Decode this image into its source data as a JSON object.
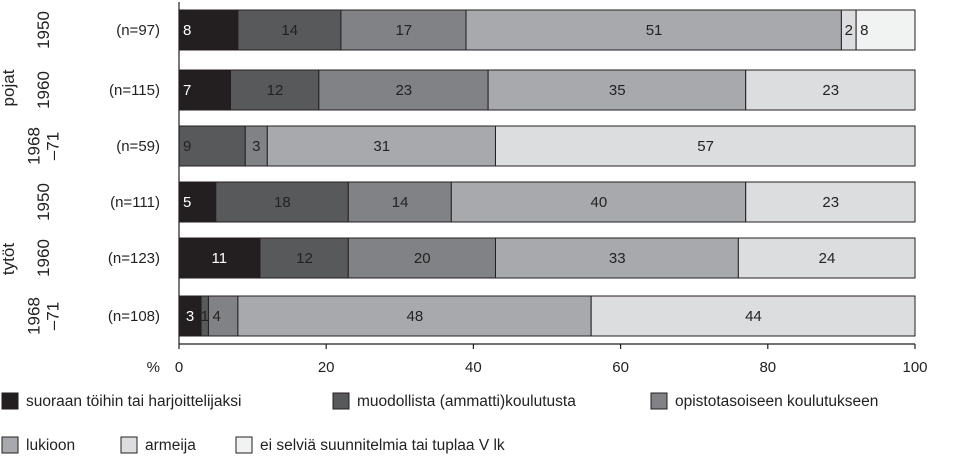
{
  "chart_data": {
    "type": "bar",
    "orientation": "horizontal",
    "stacked": true,
    "xlim": [
      0,
      100
    ],
    "xticks": [
      0,
      20,
      40,
      60,
      80,
      100
    ],
    "x_unit": "%",
    "grid": false,
    "legend_position": "bottom",
    "groups": [
      {
        "label": "pojat",
        "rows": [
          0,
          1,
          2
        ]
      },
      {
        "label": "tytöt",
        "rows": [
          3,
          4,
          5
        ]
      }
    ],
    "rows": [
      {
        "year": "1950",
        "n": "(n=97)",
        "values": [
          8,
          14,
          17,
          51,
          2,
          8
        ]
      },
      {
        "year": "1960",
        "n": "(n=115)",
        "values": [
          7,
          12,
          23,
          35,
          23,
          0
        ]
      },
      {
        "year": "1968\n–71",
        "n": "(n=59)",
        "values": [
          0,
          9,
          3,
          31,
          57,
          0
        ]
      },
      {
        "year": "1950",
        "n": "(n=111)",
        "values": [
          5,
          18,
          14,
          40,
          23,
          0
        ]
      },
      {
        "year": "1960",
        "n": "(n=123)",
        "values": [
          11,
          12,
          20,
          33,
          24,
          0
        ]
      },
      {
        "year": "1968\n–71",
        "n": "(n=108)",
        "values": [
          3,
          1,
          4,
          48,
          44,
          0
        ]
      }
    ],
    "series": [
      {
        "name": "suoraan töihin tai harjoittelijaksi",
        "color": "#231f20",
        "text_color": "#ffffff"
      },
      {
        "name": "muodollista (ammatti)koulutusta",
        "color": "#58595b",
        "text_color": "#222222"
      },
      {
        "name": "opistotasoiseen koulutukseen",
        "color": "#808285",
        "text_color": "#222222"
      },
      {
        "name": "lukioon",
        "color": "#a7a9ac",
        "text_color": "#222222"
      },
      {
        "name": "armeija",
        "color": "#dcddde",
        "text_color": "#222222"
      },
      {
        "name": "ei selviä suunnitelmia tai tuplaa V lk",
        "color": "#f1f2f2",
        "text_color": "#222222"
      }
    ]
  }
}
